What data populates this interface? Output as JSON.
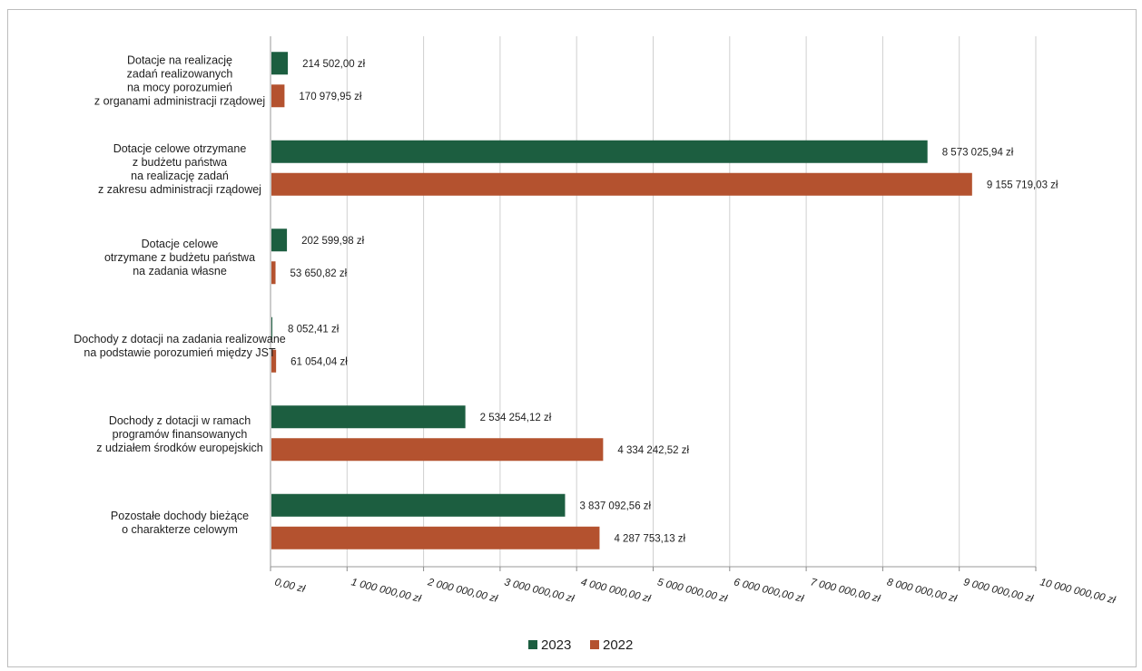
{
  "chart_data": {
    "type": "bar",
    "orientation": "horizontal",
    "title": "",
    "xlabel": "",
    "ylabel": "",
    "xlim": [
      0,
      10000000
    ],
    "x_ticks": [
      0,
      1000000,
      2000000,
      3000000,
      4000000,
      5000000,
      6000000,
      7000000,
      8000000,
      9000000,
      10000000
    ],
    "x_tick_labels": [
      "0,00 zł",
      "1 000 000,00 zł",
      "2 000 000,00 zł",
      "3 000 000,00 zł",
      "4 000 000,00 zł",
      "5 000 000,00 zł",
      "6 000 000,00 zł",
      "7 000 000,00 zł",
      "8 000 000,00 zł",
      "9 000 000,00 zł",
      "10 000 000,00 zł"
    ],
    "grid": "vertical",
    "legend_position": "bottom",
    "categories": [
      [
        "Dotacje na realizację",
        "zadań realizowanych",
        "na mocy porozumień",
        "z organami administracji rządowej"
      ],
      [
        "Dotacje celowe otrzymane",
        "z budżetu państwa",
        "na realizację zadań",
        "z zakresu administracji rządowej"
      ],
      [
        "Dotacje celowe",
        "otrzymane z budżetu państwa",
        "na zadania własne"
      ],
      [
        "Dochody z dotacji na zadania realizowane",
        "na podstawie porozumień między JST"
      ],
      [
        "Dochody z dotacji w ramach",
        "programów finansowanych",
        "z udziałem środków europejskich"
      ],
      [
        "Pozostałe dochody bieżące",
        "o charakterze celowym"
      ]
    ],
    "series": [
      {
        "name": "2023",
        "color": "#1c5e40",
        "values": [
          214502.0,
          8573025.94,
          202599.98,
          8052.41,
          2534254.12,
          3837092.56
        ],
        "labels": [
          "214 502,00 zł",
          "8 573 025,94 zł",
          "202 599,98 zł",
          "8 052,41 zł",
          "2 534 254,12 zł",
          "3 837 092,56 zł"
        ]
      },
      {
        "name": "2022",
        "color": "#b4522f",
        "values": [
          170979.95,
          9155719.03,
          53650.82,
          61054.04,
          4334242.52,
          4287753.13
        ],
        "labels": [
          "170 979,95 zł",
          "9 155 719,03 zł",
          "53 650,82 zł",
          "61 054,04 zł",
          "4 334 242,52 zł",
          "4 287 753,13 zł"
        ]
      }
    ]
  }
}
